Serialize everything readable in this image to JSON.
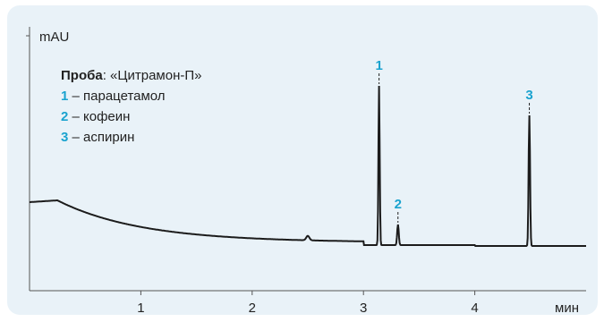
{
  "chart_data": {
    "type": "line",
    "y_unit": "mAU",
    "x_unit": "мин",
    "x_ticks": [
      1,
      2,
      3,
      4
    ],
    "x_range": [
      0,
      5
    ],
    "legend": {
      "title": "Проба",
      "sample": ": «Цитрамон-П»",
      "entries": [
        {
          "num": "1",
          "text": " – парацетамол"
        },
        {
          "num": "2",
          "text": " – кофеин"
        },
        {
          "num": "3",
          "text": " – аспирин"
        }
      ]
    },
    "peaks": [
      {
        "label": "1",
        "t": 3.14
      },
      {
        "label": "2",
        "t": 3.31
      },
      {
        "label": "3",
        "t": 4.49
      }
    ],
    "accent_color": "#1aa3cf",
    "trace_color": "#1c1c1c"
  }
}
